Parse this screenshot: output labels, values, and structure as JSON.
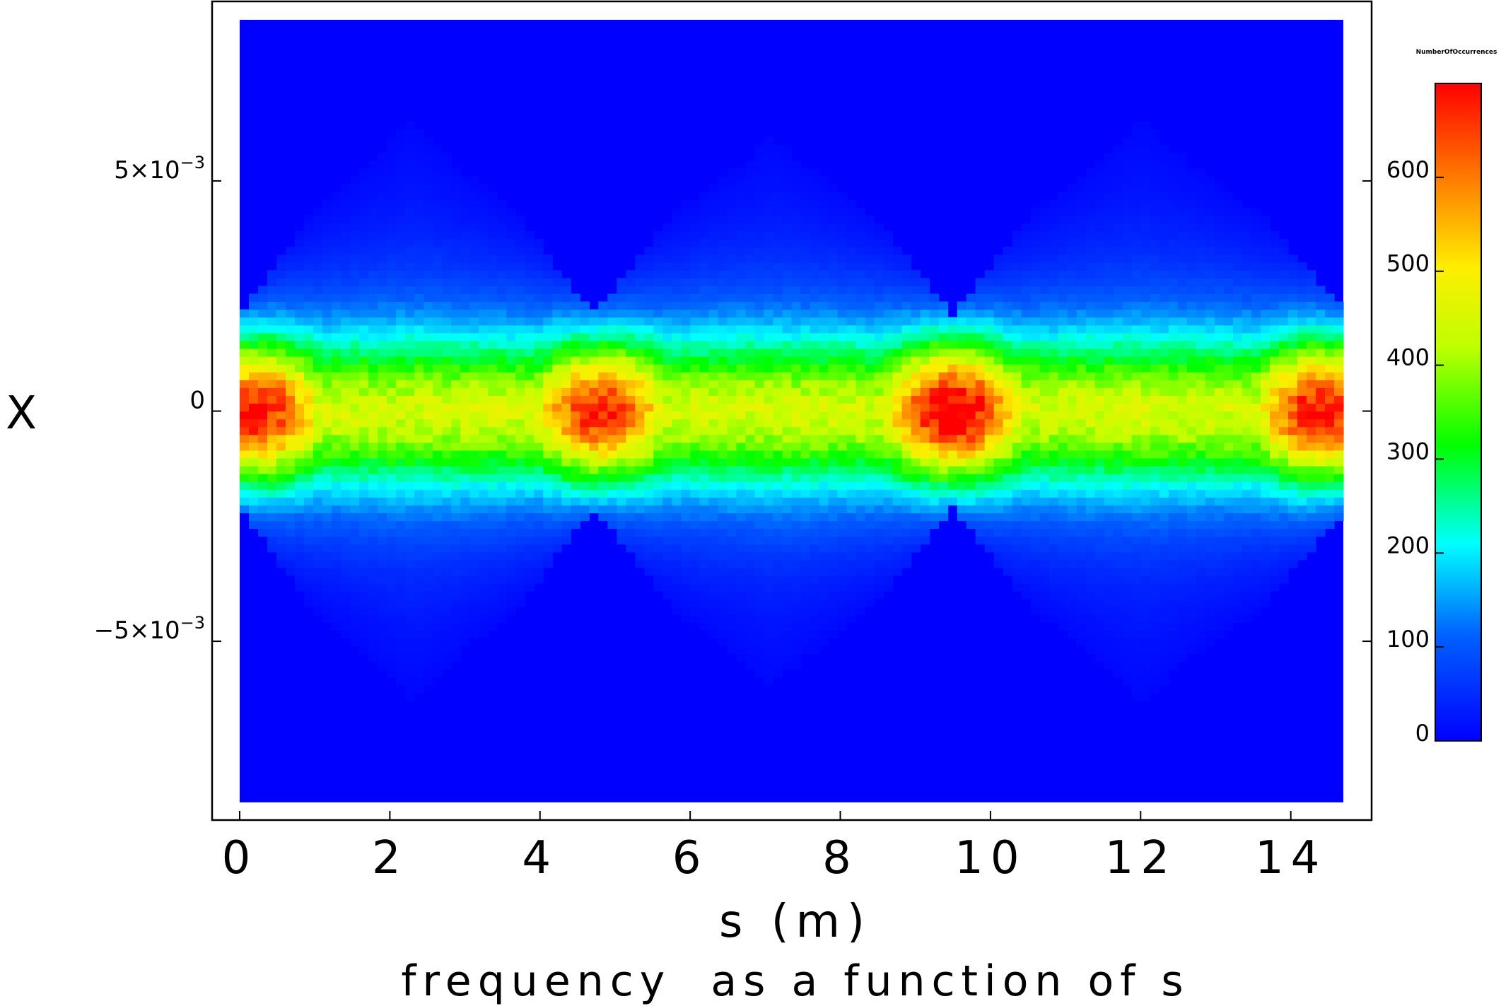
{
  "chart_data": {
    "type": "heatmap",
    "title": "frequency  as a function of s",
    "xlabel": "s (m)",
    "ylabel": "X",
    "xlim": [
      0,
      14.7
    ],
    "ylim": [
      -0.0085,
      0.0085
    ],
    "x_ticks": [
      {
        "value": 0,
        "label": "0"
      },
      {
        "value": 2,
        "label": "2"
      },
      {
        "value": 4,
        "label": "4"
      },
      {
        "value": 6,
        "label": "6"
      },
      {
        "value": 8,
        "label": "8"
      },
      {
        "value": 10,
        "label": "10"
      },
      {
        "value": 12,
        "label": "12"
      },
      {
        "value": 14,
        "label": "14"
      }
    ],
    "y_ticks": [
      {
        "value": 0.005,
        "mantissa": "5",
        "exponent": "−3"
      },
      {
        "value": 0,
        "mantissa": "0",
        "exponent": ""
      },
      {
        "value": -0.005,
        "mantissa": "−5",
        "exponent": "−3"
      }
    ],
    "colorbar": {
      "label": "NumberOfOccurrences",
      "range": [
        0,
        700
      ],
      "ticks": [
        0,
        100,
        200,
        300,
        400,
        500,
        600
      ],
      "colormap": "rainbow",
      "low_color": "#0000ff",
      "high_color": "#ff0000"
    },
    "density": {
      "envelope_max_s": [
        0.0,
        2.3,
        4.7,
        7.1,
        9.5,
        12.0,
        14.7
      ],
      "envelope_max_x": [
        0.0021,
        0.0073,
        0.0021,
        0.0069,
        0.0021,
        0.0073,
        0.0022
      ],
      "core_peaks": [
        {
          "s": 0.2,
          "x": 0.0,
          "count": 640
        },
        {
          "s": 4.8,
          "x": 0.0,
          "count": 620
        },
        {
          "s": 9.5,
          "x": 0.0,
          "count": 690
        },
        {
          "s": 14.4,
          "x": 0.0,
          "count": 640
        }
      ]
    }
  }
}
